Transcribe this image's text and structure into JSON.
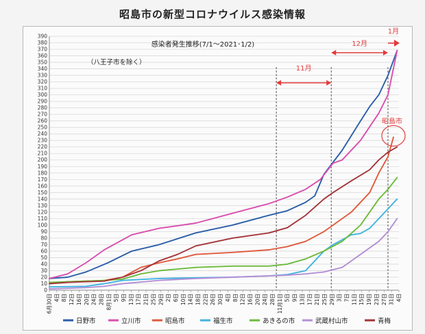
{
  "page_title": "昭島市の新型コロナウイルス感染情報",
  "colors": {
    "日野市": "#2b5ea8",
    "立川市": "#d94fae",
    "昭島市": "#e05a3c",
    "福生市": "#3fb3e0",
    "あきるの市": "#6cbb3c",
    "武蔵村山市": "#b48fd6",
    "青梅": "#a3353a",
    "annotation": "#e23b3b",
    "grid": "#d9d9d9"
  },
  "chart_data": {
    "type": "line",
    "title": "感染者発生推移(7/1～2021･1/2)",
    "note": "（八王子市を除く）",
    "ylim": [
      0,
      390
    ],
    "yticks": [
      0,
      10,
      20,
      30,
      40,
      50,
      60,
      70,
      80,
      90,
      100,
      110,
      120,
      130,
      140,
      150,
      160,
      170,
      180,
      190,
      200,
      210,
      220,
      230,
      240,
      250,
      260,
      270,
      280,
      290,
      300,
      310,
      320,
      330,
      340,
      350,
      360,
      370,
      380,
      390
    ],
    "xtick_labels": [
      "6月30日",
      "4日",
      "8日",
      "12日",
      "16日",
      "20日",
      "24日",
      "28日",
      "8月1日",
      "5日",
      "9日",
      "13日",
      "17日",
      "21日",
      "25日",
      "29日",
      "2日",
      "6日",
      "10日",
      "14日",
      "18日",
      "22日",
      "26日",
      "30日",
      "4日",
      "8日",
      "12日",
      "16日",
      "20日",
      "24日",
      "28日",
      "11月1日",
      "5日",
      "9日",
      "13日",
      "17日",
      "21日",
      "25日",
      "29日",
      "3日",
      "7日",
      "11日",
      "15日",
      "19日",
      "23日",
      "27日",
      "31日",
      "4日"
    ],
    "annotations": {
      "nov_label": "11月",
      "dec_label": "12月",
      "jan_label": "1月",
      "akishima_label": "昭島市",
      "nov_start_day": 124,
      "dec_start_day": 154,
      "jan_start_day": 185
    },
    "x_unit": "days since 6月30日",
    "series": [
      {
        "name": "日野市",
        "points": [
          [
            0,
            18
          ],
          [
            10,
            20
          ],
          [
            20,
            28
          ],
          [
            32,
            42
          ],
          [
            45,
            60
          ],
          [
            60,
            70
          ],
          [
            80,
            88
          ],
          [
            100,
            100
          ],
          [
            120,
            115
          ],
          [
            130,
            122
          ],
          [
            140,
            135
          ],
          [
            145,
            145
          ],
          [
            150,
            178
          ],
          [
            160,
            215
          ],
          [
            170,
            260
          ],
          [
            175,
            282
          ],
          [
            180,
            300
          ],
          [
            185,
            330
          ],
          [
            190,
            368
          ]
        ]
      },
      {
        "name": "立川市",
        "points": [
          [
            0,
            18
          ],
          [
            10,
            25
          ],
          [
            20,
            42
          ],
          [
            30,
            62
          ],
          [
            45,
            85
          ],
          [
            60,
            95
          ],
          [
            80,
            103
          ],
          [
            100,
            118
          ],
          [
            120,
            133
          ],
          [
            130,
            143
          ],
          [
            140,
            155
          ],
          [
            148,
            170
          ],
          [
            155,
            195
          ],
          [
            160,
            200
          ],
          [
            170,
            230
          ],
          [
            180,
            272
          ],
          [
            185,
            300
          ],
          [
            190,
            368
          ]
        ]
      },
      {
        "name": "昭島市",
        "points": [
          [
            0,
            10
          ],
          [
            10,
            13
          ],
          [
            20,
            14
          ],
          [
            30,
            15
          ],
          [
            40,
            20
          ],
          [
            50,
            35
          ],
          [
            60,
            42
          ],
          [
            70,
            48
          ],
          [
            80,
            55
          ],
          [
            100,
            58
          ],
          [
            120,
            62
          ],
          [
            130,
            67
          ],
          [
            140,
            75
          ],
          [
            150,
            90
          ],
          [
            155,
            100
          ],
          [
            165,
            120
          ],
          [
            175,
            150
          ],
          [
            180,
            180
          ],
          [
            185,
            205
          ],
          [
            188,
            235
          ]
        ]
      },
      {
        "name": "福生市",
        "points": [
          [
            0,
            5
          ],
          [
            20,
            6
          ],
          [
            30,
            10
          ],
          [
            40,
            15
          ],
          [
            60,
            18
          ],
          [
            100,
            20
          ],
          [
            120,
            22
          ],
          [
            130,
            24
          ],
          [
            140,
            30
          ],
          [
            145,
            45
          ],
          [
            150,
            60
          ],
          [
            155,
            70
          ],
          [
            165,
            85
          ],
          [
            170,
            87
          ],
          [
            175,
            95
          ],
          [
            180,
            110
          ],
          [
            185,
            125
          ],
          [
            190,
            140
          ]
        ]
      },
      {
        "name": "あきるの市",
        "points": [
          [
            0,
            12
          ],
          [
            20,
            14
          ],
          [
            30,
            15
          ],
          [
            40,
            17
          ],
          [
            50,
            25
          ],
          [
            60,
            30
          ],
          [
            80,
            35
          ],
          [
            100,
            37
          ],
          [
            120,
            37
          ],
          [
            130,
            40
          ],
          [
            140,
            48
          ],
          [
            150,
            60
          ],
          [
            160,
            75
          ],
          [
            170,
            100
          ],
          [
            175,
            120
          ],
          [
            180,
            140
          ],
          [
            185,
            155
          ],
          [
            190,
            173
          ]
        ]
      },
      {
        "name": "武蔵村山市",
        "points": [
          [
            0,
            2
          ],
          [
            20,
            4
          ],
          [
            30,
            6
          ],
          [
            40,
            10
          ],
          [
            60,
            15
          ],
          [
            80,
            18
          ],
          [
            100,
            20
          ],
          [
            120,
            22
          ],
          [
            130,
            23
          ],
          [
            140,
            25
          ],
          [
            150,
            28
          ],
          [
            160,
            35
          ],
          [
            170,
            55
          ],
          [
            180,
            75
          ],
          [
            185,
            90
          ],
          [
            190,
            110
          ]
        ]
      },
      {
        "name": "青梅",
        "points": [
          [
            0,
            10
          ],
          [
            10,
            12
          ],
          [
            20,
            13
          ],
          [
            30,
            14
          ],
          [
            40,
            20
          ],
          [
            50,
            30
          ],
          [
            60,
            45
          ],
          [
            70,
            55
          ],
          [
            80,
            68
          ],
          [
            100,
            80
          ],
          [
            120,
            88
          ],
          [
            130,
            96
          ],
          [
            140,
            115
          ],
          [
            150,
            140
          ],
          [
            155,
            150
          ],
          [
            165,
            168
          ],
          [
            175,
            185
          ],
          [
            180,
            200
          ],
          [
            185,
            212
          ],
          [
            190,
            220
          ]
        ]
      }
    ]
  }
}
